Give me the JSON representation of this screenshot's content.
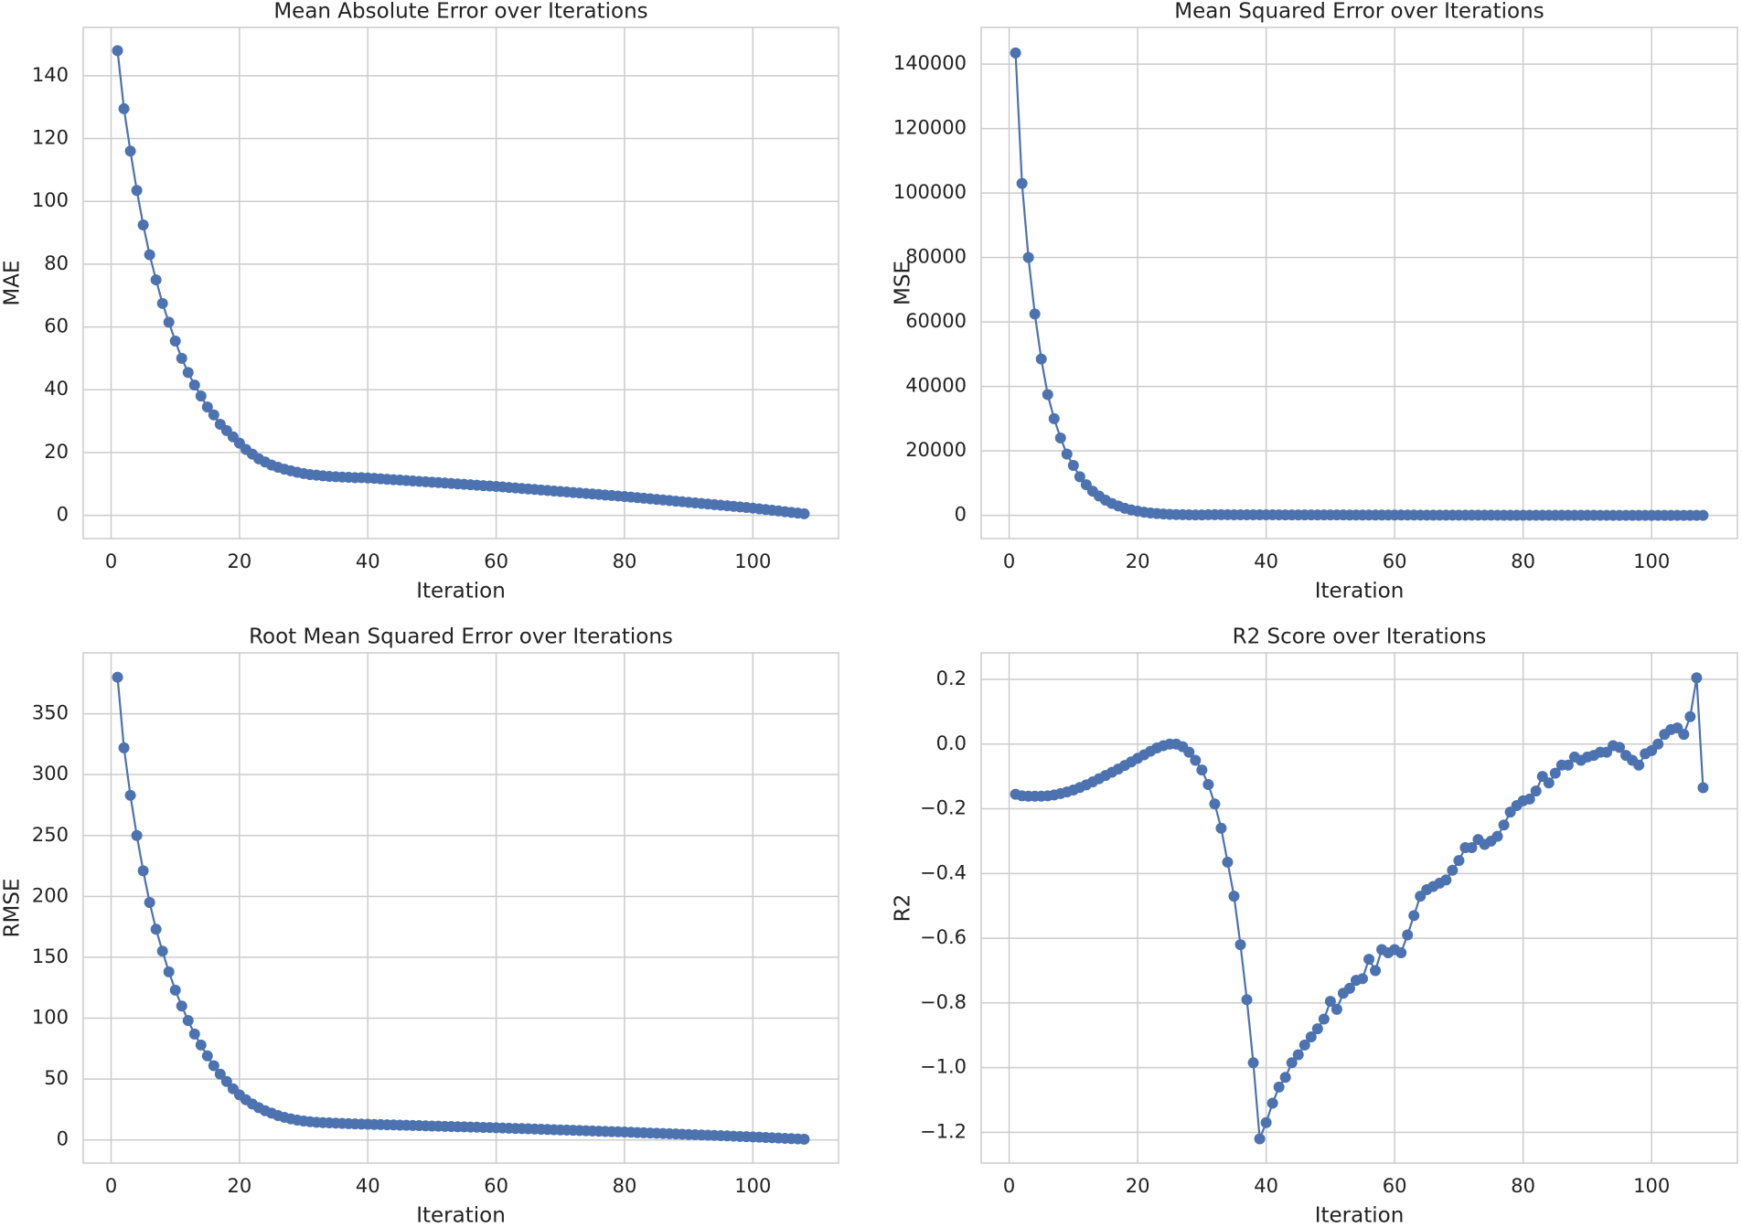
{
  "chart_data": [
    {
      "type": "line",
      "title": "Mean Absolute Error over Iterations",
      "xlabel": "Iteration",
      "ylabel": "MAE",
      "color": "#4c72b0",
      "grid": true,
      "x": [
        1,
        2,
        3,
        4,
        5,
        6,
        7,
        8,
        9,
        10,
        11,
        12,
        13,
        14,
        15,
        16,
        17,
        18,
        19,
        20,
        21,
        22,
        23,
        24,
        25,
        26,
        27,
        28,
        29,
        30,
        31,
        32,
        33,
        34,
        35,
        36,
        37,
        38,
        39,
        40,
        41,
        42,
        43,
        44,
        45,
        46,
        47,
        48,
        49,
        50,
        51,
        52,
        53,
        54,
        55,
        56,
        57,
        58,
        59,
        60,
        61,
        62,
        63,
        64,
        65,
        66,
        67,
        68,
        69,
        70,
        71,
        72,
        73,
        74,
        75,
        76,
        77,
        78,
        79,
        80,
        81,
        82,
        83,
        84,
        85,
        86,
        87,
        88,
        89,
        90,
        91,
        92,
        93,
        94,
        95,
        96,
        97,
        98,
        99,
        100,
        101,
        102,
        103,
        104,
        105,
        106,
        107,
        108
      ],
      "values": [
        148,
        129.5,
        116,
        103.5,
        92.5,
        83,
        75,
        67.5,
        61.5,
        55.5,
        50,
        45.5,
        41.5,
        38,
        34.5,
        32,
        29,
        27,
        25,
        23,
        21,
        19.5,
        18,
        17,
        16,
        15.3,
        14.7,
        14.2,
        13.7,
        13.3,
        13,
        12.8,
        12.6,
        12.4,
        12.3,
        12.2,
        12.1,
        12,
        12,
        11.9,
        11.77,
        11.63,
        11.5,
        11.36,
        11.23,
        11.09,
        10.96,
        10.82,
        10.69,
        10.55,
        10.42,
        10.28,
        10.15,
        10.01,
        9.88,
        9.74,
        9.61,
        9.47,
        9.34,
        9.2,
        9.04,
        8.88,
        8.72,
        8.56,
        8.4,
        8.24,
        8.08,
        7.92,
        7.76,
        7.6,
        7.44,
        7.28,
        7.12,
        6.96,
        6.8,
        6.64,
        6.48,
        6.32,
        6.16,
        6.0,
        5.82,
        5.63,
        5.45,
        5.26,
        5.08,
        4.89,
        4.71,
        4.52,
        4.34,
        4.15,
        3.97,
        3.78,
        3.6,
        3.41,
        3.23,
        3.04,
        2.86,
        2.67,
        2.49,
        2.3,
        2.07,
        1.85,
        1.62,
        1.4,
        1.17,
        0.95,
        0.72,
        0.5
      ],
      "xlim": [
        -4.35,
        113.35
      ],
      "xticks": [
        0,
        20,
        40,
        60,
        80,
        100
      ],
      "ylim": [
        -7.4,
        155.4
      ],
      "yticks": [
        0,
        20,
        40,
        60,
        80,
        100,
        120,
        140
      ]
    },
    {
      "type": "line",
      "title": "Mean Squared Error over Iterations",
      "xlabel": "Iteration",
      "ylabel": "MSE",
      "color": "#4c72b0",
      "grid": true,
      "x": [
        1,
        2,
        3,
        4,
        5,
        6,
        7,
        8,
        9,
        10,
        11,
        12,
        13,
        14,
        15,
        16,
        17,
        18,
        19,
        20,
        21,
        22,
        23,
        24,
        25,
        26,
        27,
        28,
        29,
        30,
        31,
        32,
        33,
        34,
        35,
        36,
        37,
        38,
        39,
        40,
        41,
        42,
        43,
        44,
        45,
        46,
        47,
        48,
        49,
        50,
        51,
        52,
        53,
        54,
        55,
        56,
        57,
        58,
        59,
        60,
        61,
        62,
        63,
        64,
        65,
        66,
        67,
        68,
        69,
        70,
        71,
        72,
        73,
        74,
        75,
        76,
        77,
        78,
        79,
        80,
        81,
        82,
        83,
        84,
        85,
        86,
        87,
        88,
        89,
        90,
        91,
        92,
        93,
        94,
        95,
        96,
        97,
        98,
        99,
        100,
        101,
        102,
        103,
        104,
        105,
        106,
        107,
        108
      ],
      "values": [
        143500,
        103000,
        80000,
        62500,
        48500,
        37500,
        30000,
        24000,
        19000,
        15500,
        12000,
        9500,
        7500,
        6000,
        4700,
        3700,
        2900,
        2200,
        1700,
        1300,
        1000,
        750,
        550,
        420,
        320,
        250,
        200,
        170,
        150,
        130,
        225,
        210,
        202,
        196,
        190,
        185,
        180,
        174,
        169,
        166,
        163,
        159,
        155,
        152,
        148,
        145,
        141,
        138,
        135,
        131,
        128,
        125,
        121,
        118,
        115,
        112,
        109,
        106,
        103,
        100,
        97,
        93,
        90,
        86,
        83,
        80,
        77,
        74,
        71,
        68,
        65,
        62,
        60,
        57,
        54,
        52,
        49,
        47,
        45,
        42,
        40,
        37,
        35,
        32,
        30,
        28,
        26,
        24,
        22,
        20,
        18.5,
        16.8,
        15.2,
        13.7,
        12.3,
        10.9,
        9.6,
        8.4,
        7.3,
        6.3,
        5.1,
        4.1,
        3.2,
        2.4,
        1.7,
        1.2,
        0.7,
        0.4
      ],
      "xlim": [
        -4.35,
        113.35
      ],
      "xticks": [
        0,
        20,
        40,
        60,
        80,
        100
      ],
      "ylim": [
        -7200,
        151400
      ],
      "yticks": [
        0,
        20000,
        40000,
        60000,
        80000,
        100000,
        120000,
        140000
      ]
    },
    {
      "type": "line",
      "title": "Root Mean Squared Error over Iterations",
      "xlabel": "Iteration",
      "ylabel": "RMSE",
      "color": "#4c72b0",
      "grid": true,
      "x": [
        1,
        2,
        3,
        4,
        5,
        6,
        7,
        8,
        9,
        10,
        11,
        12,
        13,
        14,
        15,
        16,
        17,
        18,
        19,
        20,
        21,
        22,
        23,
        24,
        25,
        26,
        27,
        28,
        29,
        30,
        31,
        32,
        33,
        34,
        35,
        36,
        37,
        38,
        39,
        40,
        41,
        42,
        43,
        44,
        45,
        46,
        47,
        48,
        49,
        50,
        51,
        52,
        53,
        54,
        55,
        56,
        57,
        58,
        59,
        60,
        61,
        62,
        63,
        64,
        65,
        66,
        67,
        68,
        69,
        70,
        71,
        72,
        73,
        74,
        75,
        76,
        77,
        78,
        79,
        80,
        81,
        82,
        83,
        84,
        85,
        86,
        87,
        88,
        89,
        90,
        91,
        92,
        93,
        94,
        95,
        96,
        97,
        98,
        99,
        100,
        101,
        102,
        103,
        104,
        105,
        106,
        107,
        108
      ],
      "values": [
        380,
        322,
        283,
        250,
        221,
        195,
        173,
        155,
        138,
        123,
        110,
        98,
        87,
        78,
        69,
        61,
        54,
        48,
        42,
        37,
        33,
        29.5,
        26.5,
        24,
        22,
        20,
        18.5,
        17.3,
        16.3,
        15.5,
        15,
        14.5,
        14.2,
        14,
        13.8,
        13.6,
        13.4,
        13.2,
        13,
        12.9,
        12.76,
        12.61,
        12.47,
        12.32,
        12.18,
        12.03,
        11.89,
        11.74,
        11.6,
        11.45,
        11.31,
        11.16,
        11.02,
        10.87,
        10.73,
        10.58,
        10.44,
        10.29,
        10.15,
        10.0,
        9.83,
        9.65,
        9.48,
        9.3,
        9.13,
        8.95,
        8.78,
        8.6,
        8.43,
        8.25,
        8.08,
        7.9,
        7.73,
        7.55,
        7.38,
        7.2,
        7.03,
        6.85,
        6.68,
        6.5,
        6.3,
        6.1,
        5.9,
        5.7,
        5.5,
        5.3,
        5.1,
        4.9,
        4.7,
        4.5,
        4.3,
        4.1,
        3.9,
        3.7,
        3.5,
        3.3,
        3.1,
        2.9,
        2.7,
        2.5,
        2.26,
        2.03,
        1.79,
        1.56,
        1.32,
        1.09,
        0.85,
        0.6
      ],
      "xlim": [
        -4.35,
        113.35
      ],
      "xticks": [
        0,
        20,
        40,
        60,
        80,
        100
      ],
      "ylim": [
        -19,
        400
      ],
      "yticks": [
        0,
        50,
        100,
        150,
        200,
        250,
        300,
        350
      ]
    },
    {
      "type": "line",
      "title": "R2 Score over Iterations",
      "xlabel": "Iteration",
      "ylabel": "R2",
      "color": "#4c72b0",
      "grid": true,
      "x": [
        1,
        2,
        3,
        4,
        5,
        6,
        7,
        8,
        9,
        10,
        11,
        12,
        13,
        14,
        15,
        16,
        17,
        18,
        19,
        20,
        21,
        22,
        23,
        24,
        25,
        26,
        27,
        28,
        29,
        30,
        31,
        32,
        33,
        34,
        35,
        36,
        37,
        38,
        39,
        40,
        41,
        42,
        43,
        44,
        45,
        46,
        47,
        48,
        49,
        50,
        51,
        52,
        53,
        54,
        55,
        56,
        57,
        58,
        59,
        60,
        61,
        62,
        63,
        64,
        65,
        66,
        67,
        68,
        69,
        70,
        71,
        72,
        73,
        74,
        75,
        76,
        77,
        78,
        79,
        80,
        81,
        82,
        83,
        84,
        85,
        86,
        87,
        88,
        89,
        90,
        91,
        92,
        93,
        94,
        95,
        96,
        97,
        98,
        99,
        100,
        101,
        102,
        103,
        104,
        105,
        106,
        107,
        108
      ],
      "values": [
        -0.155,
        -0.16,
        -0.161,
        -0.161,
        -0.161,
        -0.16,
        -0.157,
        -0.153,
        -0.148,
        -0.142,
        -0.134,
        -0.126,
        -0.117,
        -0.107,
        -0.097,
        -0.087,
        -0.077,
        -0.066,
        -0.055,
        -0.044,
        -0.033,
        -0.022,
        -0.012,
        -0.005,
        0.0,
        0.0,
        -0.008,
        -0.025,
        -0.05,
        -0.08,
        -0.125,
        -0.185,
        -0.26,
        -0.365,
        -0.47,
        -0.62,
        -0.79,
        -0.985,
        -1.22,
        -1.17,
        -1.11,
        -1.06,
        -1.03,
        -0.985,
        -0.96,
        -0.93,
        -0.905,
        -0.88,
        -0.85,
        -0.795,
        -0.82,
        -0.77,
        -0.755,
        -0.73,
        -0.725,
        -0.665,
        -0.7,
        -0.635,
        -0.645,
        -0.635,
        -0.645,
        -0.59,
        -0.53,
        -0.47,
        -0.45,
        -0.44,
        -0.43,
        -0.42,
        -0.39,
        -0.36,
        -0.32,
        -0.32,
        -0.295,
        -0.31,
        -0.3,
        -0.285,
        -0.25,
        -0.21,
        -0.19,
        -0.175,
        -0.17,
        -0.145,
        -0.1,
        -0.12,
        -0.09,
        -0.065,
        -0.065,
        -0.04,
        -0.05,
        -0.04,
        -0.035,
        -0.025,
        -0.025,
        -0.005,
        -0.01,
        -0.035,
        -0.05,
        -0.065,
        -0.03,
        -0.02,
        0.0,
        0.03,
        0.045,
        0.05,
        0.03,
        0.085,
        0.205,
        -0.135
      ],
      "xlim": [
        -4.35,
        113.35
      ],
      "xticks": [
        0,
        20,
        40,
        60,
        80,
        100
      ],
      "ylim": [
        -1.295,
        0.282
      ],
      "yticks": [
        {
          "value": -1.2,
          "label": "−1.2"
        },
        {
          "value": -1.0,
          "label": "−1.0"
        },
        {
          "value": -0.8,
          "label": "−0.8"
        },
        {
          "value": -0.6,
          "label": "−0.6"
        },
        {
          "value": -0.4,
          "label": "−0.4"
        },
        {
          "value": -0.2,
          "label": "−0.2"
        },
        {
          "value": 0.0,
          "label": "0.0"
        },
        0.2
      ]
    }
  ]
}
